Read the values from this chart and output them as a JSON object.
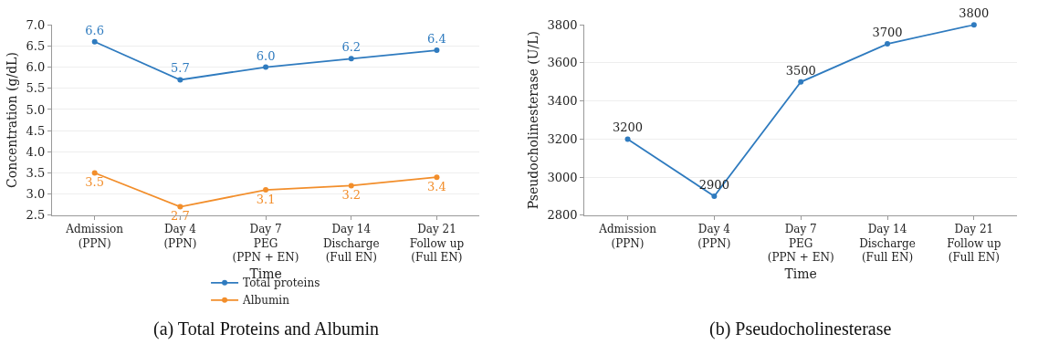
{
  "chart_data": [
    {
      "type": "line",
      "title": "(a) Total Proteins and Albumin",
      "xlabel": "Time",
      "ylabel": "Concentration (g/dL)",
      "categories": [
        "Admission\n(PPN)",
        "Day 4\n(PPN)",
        "Day 7\nPEG\n(PPN + EN)",
        "Day 14\nDischarge\n(Full EN)",
        "Day 21\nFollow up\n(Full EN)"
      ],
      "series": [
        {
          "name": "Total proteins",
          "color": "#2f7bbf",
          "values": [
            6.6,
            5.7,
            6.0,
            6.2,
            6.4
          ],
          "value_labels": [
            "6.6",
            "5.7",
            "6.0",
            "6.2",
            "6.4"
          ]
        },
        {
          "name": "Albumin",
          "color": "#f28e2b",
          "values": [
            3.5,
            2.7,
            3.1,
            3.2,
            3.4
          ],
          "value_labels": [
            "3.5",
            "2.7",
            "3.1",
            "3.2",
            "3.4"
          ]
        }
      ],
      "ylim": [
        2.5,
        7.0
      ],
      "yticks": [
        {
          "value": 2.5,
          "label": "2.5"
        },
        {
          "value": 3.0,
          "label": "3.0"
        },
        {
          "value": 3.5,
          "label": "3.5"
        },
        {
          "value": 4.0,
          "label": "4.0"
        },
        {
          "value": 4.5,
          "label": "4.5"
        },
        {
          "value": 5.0,
          "label": "5.0"
        },
        {
          "value": 5.5,
          "label": "5.5"
        },
        {
          "value": 6.0,
          "label": "6.0"
        },
        {
          "value": 6.5,
          "label": "6.5"
        },
        {
          "value": 7.0,
          "label": "7.0"
        }
      ],
      "grid": "y",
      "legend": "bottom",
      "marker": "circle",
      "line_style": "solid"
    },
    {
      "type": "line",
      "title": "(b) Pseudocholinesterase",
      "xlabel": "Time",
      "ylabel": "Pseudocholinesterase (U/L)",
      "categories": [
        "Admission\n(PPN)",
        "Day 4\n(PPN)",
        "Day 7\nPEG\n(PPN + EN)",
        "Day 14\nDischarge\n(Full EN)",
        "Day 21\nFollow up\n(Full EN)"
      ],
      "series": [
        {
          "color": "#2f7bbf",
          "values": [
            3200,
            2900,
            3500,
            3700,
            3800
          ]
        }
      ],
      "ylim": [
        2800,
        3800
      ],
      "yticks": [
        2800,
        3000,
        3200,
        3400,
        3600,
        3800
      ],
      "grid": "y",
      "marker": "circle",
      "line_style": "solid",
      "data_labels": true
    }
  ]
}
